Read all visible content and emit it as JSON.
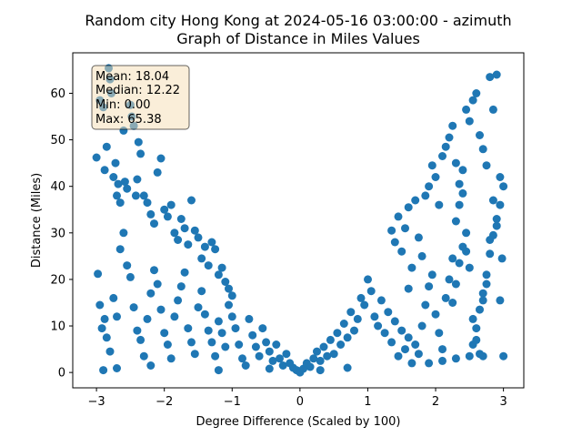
{
  "chart_data": {
    "type": "scatter",
    "title_line1": "Random city Hong Kong at 2024-05-16 03:00:00  - azimuth",
    "title_line2": "Graph of Distance in Miles Values",
    "xlabel": "Degree Difference (Scaled by 100)",
    "ylabel": "Distance (Miles)",
    "xlim": [
      -3.35,
      3.3
    ],
    "ylim": [
      -3.3,
      68.7
    ],
    "xticks": [
      -3,
      -2,
      -1,
      0,
      1,
      2,
      3
    ],
    "yticks": [
      0,
      10,
      20,
      30,
      40,
      50,
      60
    ],
    "color": "#1f77b4",
    "stats": {
      "mean": "Mean: 18.04",
      "median": "Median: 12.22",
      "min": "Min: 0.00",
      "max": "Max: 65.38"
    },
    "points": [
      [
        -3.0,
        46.2
      ],
      [
        -2.95,
        58.5
      ],
      [
        -2.9,
        57.0
      ],
      [
        -2.88,
        43.5
      ],
      [
        -2.85,
        48.5
      ],
      [
        -2.82,
        65.4
      ],
      [
        -2.8,
        63.0
      ],
      [
        -2.78,
        60.0
      ],
      [
        -2.75,
        42.0
      ],
      [
        -2.72,
        45.0
      ],
      [
        -2.7,
        38.0
      ],
      [
        -2.68,
        40.5
      ],
      [
        -2.65,
        36.5
      ],
      [
        -2.6,
        52.0
      ],
      [
        -2.58,
        41.0
      ],
      [
        -2.55,
        39.5
      ],
      [
        -2.5,
        57.5
      ],
      [
        -2.48,
        55.0
      ],
      [
        -2.45,
        53.0
      ],
      [
        -2.42,
        38.0
      ],
      [
        -2.4,
        41.5
      ],
      [
        -2.38,
        49.5
      ],
      [
        -2.35,
        47.0
      ],
      [
        -2.3,
        38.0
      ],
      [
        -2.25,
        36.5
      ],
      [
        -2.2,
        34.0
      ],
      [
        -2.15,
        32.0
      ],
      [
        -2.1,
        43.0
      ],
      [
        -2.05,
        46.0
      ],
      [
        -2.0,
        35.0
      ],
      [
        -1.95,
        33.5
      ],
      [
        -1.9,
        36.0
      ],
      [
        -1.85,
        30.0
      ],
      [
        -1.8,
        28.5
      ],
      [
        -1.75,
        33.0
      ],
      [
        -1.7,
        31.0
      ],
      [
        -1.65,
        27.5
      ],
      [
        -1.6,
        37.0
      ],
      [
        -1.55,
        30.5
      ],
      [
        -1.5,
        29.0
      ],
      [
        -1.45,
        24.5
      ],
      [
        -1.4,
        27.0
      ],
      [
        -1.35,
        23.0
      ],
      [
        -1.3,
        28.0
      ],
      [
        -1.25,
        26.5
      ],
      [
        -1.2,
        21.0
      ],
      [
        -1.15,
        22.5
      ],
      [
        -1.1,
        19.5
      ],
      [
        -1.05,
        18.0
      ],
      [
        -1.0,
        16.5
      ],
      [
        -2.98,
        21.2
      ],
      [
        -2.95,
        14.5
      ],
      [
        -2.92,
        9.5
      ],
      [
        -2.88,
        11.5
      ],
      [
        -2.85,
        7.5
      ],
      [
        -2.8,
        4.5
      ],
      [
        -2.75,
        16.0
      ],
      [
        -2.7,
        12.0
      ],
      [
        -2.65,
        26.5
      ],
      [
        -2.6,
        30.0
      ],
      [
        -2.55,
        23.0
      ],
      [
        -2.5,
        20.5
      ],
      [
        -2.45,
        14.0
      ],
      [
        -2.4,
        9.0
      ],
      [
        -2.35,
        7.0
      ],
      [
        -2.3,
        3.5
      ],
      [
        -2.25,
        11.5
      ],
      [
        -2.2,
        17.0
      ],
      [
        -2.15,
        22.0
      ],
      [
        -2.1,
        19.0
      ],
      [
        -2.05,
        13.5
      ],
      [
        -2.0,
        8.5
      ],
      [
        -1.95,
        6.0
      ],
      [
        -1.9,
        3.0
      ],
      [
        -1.85,
        12.0
      ],
      [
        -1.8,
        15.5
      ],
      [
        -1.75,
        18.5
      ],
      [
        -1.7,
        21.5
      ],
      [
        -1.65,
        9.5
      ],
      [
        -1.6,
        6.5
      ],
      [
        -1.55,
        4.0
      ],
      [
        -1.5,
        14.0
      ],
      [
        -1.45,
        17.5
      ],
      [
        -1.4,
        12.5
      ],
      [
        -1.35,
        9.0
      ],
      [
        -1.3,
        6.5
      ],
      [
        -1.25,
        3.5
      ],
      [
        -1.2,
        11.0
      ],
      [
        -1.15,
        8.5
      ],
      [
        -1.1,
        5.5
      ],
      [
        -1.05,
        14.5
      ],
      [
        -1.0,
        12.0
      ],
      [
        -0.95,
        9.5
      ],
      [
        -0.9,
        6.0
      ],
      [
        -0.85,
        3.0
      ],
      [
        -0.8,
        1.5
      ],
      [
        -0.75,
        11.5
      ],
      [
        -0.7,
        8.0
      ],
      [
        -0.65,
        5.5
      ],
      [
        -0.6,
        3.5
      ],
      [
        -2.9,
        0.5
      ],
      [
        -2.7,
        0.9
      ],
      [
        -2.2,
        1.5
      ],
      [
        -1.2,
        0.5
      ],
      [
        -0.55,
        9.5
      ],
      [
        -0.5,
        6.5
      ],
      [
        -0.45,
        4.5
      ],
      [
        -0.4,
        2.5
      ],
      [
        -0.35,
        6.0
      ],
      [
        -0.3,
        3.0
      ],
      [
        -0.25,
        1.5
      ],
      [
        -0.2,
        4.0
      ],
      [
        -0.15,
        2.0
      ],
      [
        -0.1,
        1.0
      ],
      [
        -0.05,
        0.5
      ],
      [
        0.0,
        0.0
      ],
      [
        0.05,
        0.8
      ],
      [
        0.1,
        2.0
      ],
      [
        0.15,
        1.2
      ],
      [
        0.2,
        3.0
      ],
      [
        0.25,
        4.5
      ],
      [
        0.3,
        2.5
      ],
      [
        0.35,
        5.5
      ],
      [
        0.4,
        3.5
      ],
      [
        0.45,
        7.0
      ],
      [
        0.5,
        4.0
      ],
      [
        0.55,
        8.5
      ],
      [
        0.6,
        6.0
      ],
      [
        0.65,
        10.5
      ],
      [
        0.7,
        7.5
      ],
      [
        0.75,
        13.0
      ],
      [
        0.8,
        9.0
      ],
      [
        0.85,
        11.5
      ],
      [
        0.9,
        16.0
      ],
      [
        0.95,
        14.5
      ],
      [
        1.0,
        20.0
      ],
      [
        1.05,
        17.5
      ],
      [
        1.1,
        12.0
      ],
      [
        1.15,
        10.0
      ],
      [
        1.2,
        15.5
      ],
      [
        1.25,
        8.5
      ],
      [
        1.3,
        13.0
      ],
      [
        1.35,
        6.5
      ],
      [
        1.4,
        11.0
      ],
      [
        1.45,
        3.5
      ],
      [
        1.5,
        9.0
      ],
      [
        1.55,
        5.0
      ],
      [
        1.6,
        7.5
      ],
      [
        1.65,
        2.0
      ],
      [
        1.7,
        6.0
      ],
      [
        1.75,
        4.0
      ],
      [
        -0.45,
        0.8
      ],
      [
        0.3,
        0.5
      ],
      [
        0.7,
        1.0
      ],
      [
        1.35,
        30.5
      ],
      [
        1.4,
        28.0
      ],
      [
        1.45,
        33.5
      ],
      [
        1.5,
        26.0
      ],
      [
        1.55,
        31.0
      ],
      [
        1.6,
        35.5
      ],
      [
        1.65,
        22.5
      ],
      [
        1.7,
        37.0
      ],
      [
        1.75,
        29.0
      ],
      [
        1.8,
        25.0
      ],
      [
        1.85,
        38.0
      ],
      [
        1.9,
        40.0
      ],
      [
        1.95,
        44.5
      ],
      [
        2.0,
        42.0
      ],
      [
        2.05,
        36.0
      ],
      [
        2.1,
        46.5
      ],
      [
        2.15,
        48.5
      ],
      [
        2.2,
        50.5
      ],
      [
        2.25,
        53.0
      ],
      [
        2.3,
        45.0
      ],
      [
        2.35,
        40.5
      ],
      [
        2.4,
        43.5
      ],
      [
        2.45,
        56.5
      ],
      [
        2.5,
        54.0
      ],
      [
        2.55,
        58.5
      ],
      [
        2.6,
        60.0
      ],
      [
        2.65,
        51.0
      ],
      [
        2.7,
        48.0
      ],
      [
        2.75,
        44.5
      ],
      [
        2.8,
        63.5
      ],
      [
        2.85,
        56.5
      ],
      [
        2.9,
        64.0
      ],
      [
        2.95,
        42.0
      ],
      [
        3.0,
        40.0
      ],
      [
        2.98,
        24.5
      ],
      [
        2.95,
        36.0
      ],
      [
        2.9,
        33.0
      ],
      [
        2.85,
        29.5
      ],
      [
        2.8,
        25.5
      ],
      [
        2.75,
        21.0
      ],
      [
        2.7,
        17.0
      ],
      [
        2.65,
        13.5
      ],
      [
        2.6,
        9.5
      ],
      [
        2.55,
        6.0
      ],
      [
        2.5,
        3.5
      ],
      [
        2.45,
        30.0
      ],
      [
        2.4,
        27.0
      ],
      [
        2.35,
        23.5
      ],
      [
        2.3,
        19.0
      ],
      [
        2.25,
        15.0
      ],
      [
        1.8,
        10.0
      ],
      [
        1.85,
        14.5
      ],
      [
        1.9,
        18.5
      ],
      [
        1.95,
        21.0
      ],
      [
        2.0,
        12.5
      ],
      [
        2.05,
        8.5
      ],
      [
        2.1,
        5.0
      ],
      [
        2.15,
        16.0
      ],
      [
        2.2,
        20.0
      ],
      [
        2.25,
        24.5
      ],
      [
        2.3,
        32.5
      ],
      [
        2.35,
        36.0
      ],
      [
        2.4,
        38.5
      ],
      [
        2.45,
        26.0
      ],
      [
        2.5,
        22.5
      ],
      [
        2.55,
        11.5
      ],
      [
        2.6,
        7.0
      ],
      [
        2.65,
        4.0
      ],
      [
        2.7,
        15.5
      ],
      [
        2.75,
        19.0
      ],
      [
        2.8,
        28.5
      ],
      [
        2.85,
        37.0
      ],
      [
        2.9,
        31.5
      ],
      [
        2.95,
        15.5
      ],
      [
        3.0,
        3.5
      ],
      [
        1.9,
        2.0
      ],
      [
        2.1,
        2.5
      ],
      [
        2.3,
        3.0
      ],
      [
        2.7,
        3.5
      ],
      [
        1.6,
        18.0
      ]
    ]
  }
}
